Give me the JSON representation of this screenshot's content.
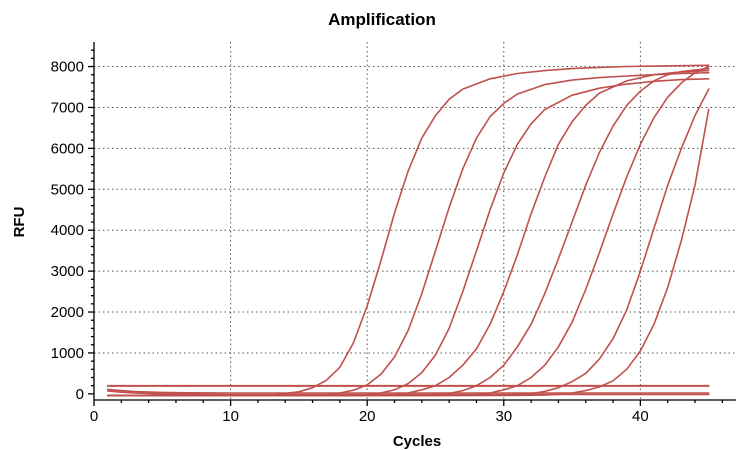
{
  "chart_data": {
    "type": "line",
    "title": "Amplification",
    "xlabel": "Cycles",
    "ylabel": "RFU",
    "xlim": [
      0,
      47
    ],
    "ylim": [
      -150,
      8600
    ],
    "xticks": [
      0,
      10,
      20,
      30,
      40
    ],
    "yticks": [
      0,
      1000,
      2000,
      3000,
      4000,
      5000,
      6000,
      7000,
      8000
    ],
    "grid": true,
    "legend": "none",
    "line_color": "#c0504d",
    "series": [
      {
        "x": [
          1,
          3,
          5,
          7,
          9,
          11,
          13,
          15,
          16,
          17,
          18,
          19,
          20,
          21,
          22,
          23,
          24,
          25,
          26,
          27,
          29,
          31,
          33,
          35,
          37,
          39,
          41,
          43,
          45
        ],
        "y": [
          -40,
          -40,
          -40,
          -40,
          -40,
          -40,
          -30,
          50,
          150,
          330,
          650,
          1250,
          2150,
          3250,
          4420,
          5450,
          6250,
          6800,
          7200,
          7450,
          7700,
          7830,
          7900,
          7950,
          7980,
          8000,
          8010,
          8020,
          8030
        ]
      },
      {
        "x": [
          1,
          3,
          5,
          7,
          9,
          11,
          13,
          15,
          17,
          18,
          19,
          20,
          21,
          22,
          23,
          24,
          25,
          26,
          27,
          28,
          29,
          30,
          31,
          33,
          35,
          37,
          39,
          41,
          43,
          45
        ],
        "y": [
          -40,
          -40,
          -40,
          -40,
          -40,
          -40,
          -40,
          -40,
          -30,
          20,
          90,
          220,
          480,
          900,
          1550,
          2450,
          3500,
          4550,
          5500,
          6250,
          6780,
          7100,
          7330,
          7560,
          7670,
          7730,
          7770,
          7800,
          7830,
          7850
        ]
      },
      {
        "x": [
          1,
          3,
          5,
          7,
          9,
          11,
          13,
          15,
          17,
          19,
          20,
          21,
          22,
          23,
          24,
          25,
          26,
          27,
          28,
          29,
          30,
          31,
          32,
          33,
          35,
          37,
          39,
          41,
          43,
          45
        ],
        "y": [
          -40,
          -40,
          -40,
          -40,
          -40,
          -40,
          -40,
          -40,
          -40,
          -40,
          -20,
          20,
          100,
          250,
          520,
          950,
          1600,
          2500,
          3500,
          4500,
          5400,
          6100,
          6600,
          6950,
          7300,
          7470,
          7570,
          7640,
          7680,
          7700
        ]
      },
      {
        "x": [
          1,
          5,
          10,
          15,
          18,
          20,
          22,
          23,
          24,
          25,
          26,
          27,
          28,
          29,
          30,
          31,
          32,
          33,
          34,
          35,
          36,
          37,
          39,
          41,
          43,
          45
        ],
        "y": [
          -40,
          -40,
          -40,
          -40,
          -40,
          -40,
          -20,
          20,
          100,
          200,
          400,
          700,
          1100,
          1700,
          2500,
          3400,
          4400,
          5300,
          6100,
          6650,
          7050,
          7350,
          7650,
          7800,
          7870,
          7900
        ]
      },
      {
        "x": [
          1,
          5,
          10,
          15,
          20,
          24,
          26,
          27,
          28,
          29,
          30,
          31,
          32,
          33,
          34,
          35,
          36,
          37,
          38,
          39,
          40,
          41,
          42,
          43,
          45
        ],
        "y": [
          -40,
          -40,
          -40,
          -40,
          -40,
          -30,
          10,
          80,
          200,
          400,
          700,
          1150,
          1700,
          2450,
          3300,
          4200,
          5100,
          5900,
          6550,
          7050,
          7400,
          7650,
          7800,
          7880,
          7950
        ]
      },
      {
        "x": [
          1,
          5,
          10,
          15,
          20,
          25,
          28,
          29,
          30,
          31,
          32,
          33,
          34,
          35,
          36,
          37,
          38,
          39,
          40,
          41,
          42,
          43,
          44,
          45
        ],
        "y": [
          -40,
          -40,
          -40,
          -40,
          -40,
          -40,
          -20,
          20,
          100,
          200,
          400,
          700,
          1150,
          1750,
          2550,
          3450,
          4400,
          5300,
          6100,
          6750,
          7250,
          7600,
          7850,
          8000
        ]
      },
      {
        "x": [
          1,
          5,
          10,
          15,
          20,
          25,
          30,
          32,
          33,
          34,
          35,
          36,
          37,
          38,
          39,
          40,
          41,
          42,
          43,
          44,
          45
        ],
        "y": [
          -40,
          -40,
          -40,
          -40,
          -40,
          -40,
          -30,
          10,
          60,
          150,
          300,
          500,
          850,
          1350,
          2050,
          3000,
          4050,
          5100,
          6000,
          6800,
          7450
        ]
      },
      {
        "x": [
          1,
          5,
          10,
          15,
          20,
          25,
          30,
          33,
          34,
          35,
          36,
          37,
          38,
          39,
          40,
          41,
          42,
          43,
          44,
          45
        ],
        "y": [
          -40,
          -40,
          -40,
          -40,
          -40,
          -40,
          -40,
          -30,
          -10,
          20,
          80,
          170,
          320,
          600,
          1050,
          1700,
          2600,
          3750,
          5100,
          6950
        ]
      },
      {
        "x": [
          1,
          5,
          10,
          15,
          20,
          25,
          30,
          35,
          40,
          45
        ],
        "y": [
          200,
          200,
          200,
          200,
          200,
          200,
          200,
          200,
          200,
          200
        ]
      },
      {
        "x": [
          1,
          5,
          10,
          15,
          20,
          25,
          30,
          35,
          40,
          45
        ],
        "y": [
          190,
          190,
          190,
          190,
          190,
          190,
          190,
          190,
          190,
          190
        ]
      },
      {
        "x": [
          1,
          2,
          3,
          5,
          7,
          10,
          15,
          20,
          25,
          30,
          35,
          40,
          45
        ],
        "y": [
          70,
          40,
          20,
          0,
          -10,
          -15,
          -15,
          -15,
          -15,
          -15,
          -15,
          -15,
          -15
        ]
      },
      {
        "x": [
          1,
          2,
          3,
          5,
          7,
          10,
          15,
          20,
          25,
          30,
          35,
          40,
          45
        ],
        "y": [
          110,
          80,
          55,
          35,
          25,
          20,
          20,
          20,
          20,
          20,
          20,
          20,
          20
        ]
      }
    ]
  }
}
